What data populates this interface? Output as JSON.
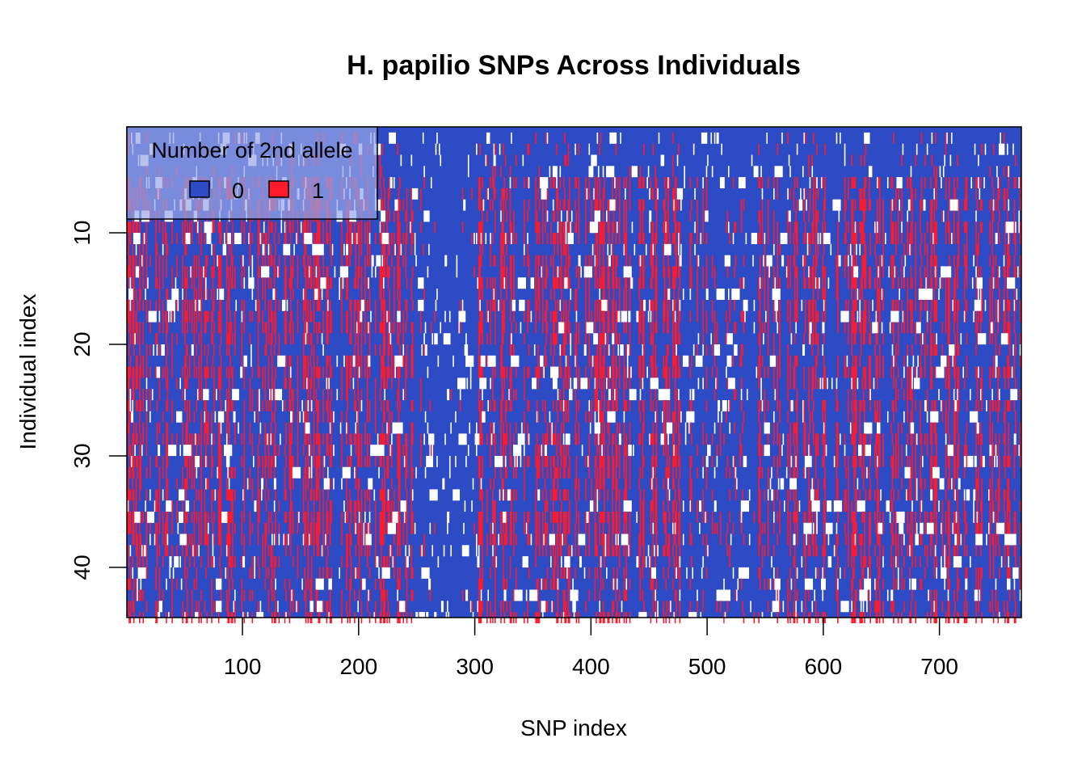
{
  "chart_data": {
    "type": "heatmap",
    "title": "H. papilio SNPs Across Individuals",
    "xlabel": "SNP index",
    "ylabel": "Individual index",
    "xlim": [
      1,
      770
    ],
    "ylim": [
      1,
      44
    ],
    "y_reversed": true,
    "xticks": [
      100,
      200,
      300,
      400,
      500,
      600,
      700
    ],
    "yticks": [
      10,
      20,
      30,
      40
    ],
    "n_snps": 770,
    "n_individuals": 44,
    "categories": [
      "0",
      "1"
    ],
    "colors": {
      "0": "#2E4BC6",
      "1": "#FF1A2B",
      "missing": "#FFFFFF"
    },
    "legend": {
      "title": "Number of 2nd allele",
      "entries": [
        {
          "label": "0",
          "color": "#2E4BC6"
        },
        {
          "label": "1",
          "color": "#FF1A2B"
        }
      ],
      "position": "top-left",
      "background": "#98A6E6"
    },
    "approx_fraction_allele1": 0.18,
    "approx_fraction_missing": 0.04
  }
}
